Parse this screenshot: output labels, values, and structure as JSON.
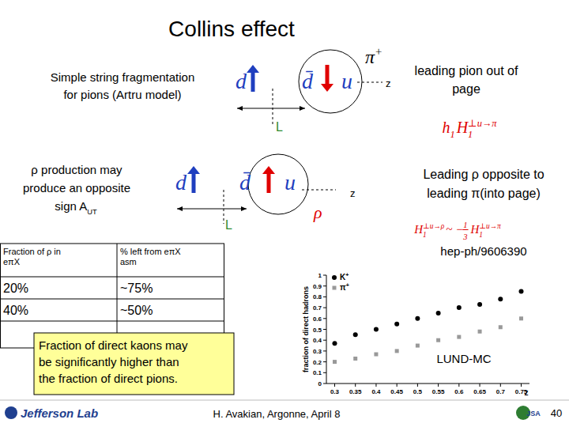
{
  "title": "Collins effect",
  "diagrams": [
    {
      "caption": [
        [
          {
            "t": "Simple string fragmentation"
          }
        ],
        [
          {
            "t": "for pions (Artru model)"
          }
        ]
      ],
      "quarks": [
        "d",
        "d̄",
        "u"
      ],
      "hadron": [
        {
          "t": "π",
          "sup": "+"
        }
      ],
      "axis_label": "z",
      "length_label": "L",
      "note": [
        "leading pion out of",
        "page"
      ],
      "formula": [
        {
          "t": "h",
          "sub": "1"
        },
        {
          "t": "H",
          "sub": "1",
          "sup": "⊥u→π"
        }
      ]
    },
    {
      "caption": [
        [
          {
            "t": "ρ production may"
          }
        ],
        [
          {
            "t": "produce an opposite"
          }
        ],
        [
          {
            "t": "sign A",
            "sub": "UT"
          }
        ]
      ],
      "quarks": [
        "d",
        "d̄",
        "u"
      ],
      "hadron": [
        {
          "t": "ρ"
        }
      ],
      "axis_label": "z",
      "length_label": "L",
      "note": [
        "Leading ρ opposite to",
        "leading π(into page)"
      ],
      "formula": [
        {
          "t": "H",
          "sub": "1",
          "sup": "⊥u→ρ"
        },
        {
          "t": " ~ −"
        },
        {
          "frac": [
            "1",
            "3"
          ]
        },
        {
          "t": "H",
          "sub": "1",
          "sup": "⊥u→π"
        }
      ]
    }
  ],
  "reference": "hep-ph/9606390",
  "table": {
    "header": [
      [
        "Fraction of ρ in",
        "eπX"
      ],
      [
        "% left from eπX",
        "asm"
      ]
    ],
    "rows": [
      [
        "20%",
        "~75%"
      ],
      [
        "40%",
        "~50%"
      ]
    ]
  },
  "callout": [
    "Fraction of direct kaons may",
    "be significantly higher than",
    "the fraction of direct pions."
  ],
  "chart_data": {
    "type": "scatter",
    "x": [
      0.3,
      0.35,
      0.4,
      0.45,
      0.5,
      0.55,
      0.6,
      0.65,
      0.7,
      0.75
    ],
    "series": [
      {
        "name": "K+",
        "color": "#000000",
        "marker": "circle",
        "values": [
          0.37,
          0.45,
          0.5,
          0.55,
          0.6,
          0.65,
          0.7,
          0.73,
          0.78,
          0.85
        ]
      },
      {
        "name": "π+",
        "color": "#999999",
        "marker": "square",
        "values": [
          0.2,
          0.23,
          0.27,
          0.3,
          0.35,
          0.4,
          0.43,
          0.48,
          0.52,
          0.6
        ]
      }
    ],
    "xlabel": "z",
    "ylabel": "fraction of direct hadrons",
    "xlim": [
      0.28,
      0.77
    ],
    "ylim": [
      0,
      1
    ],
    "xticks": [
      0.3,
      0.35,
      0.4,
      0.45,
      0.5,
      0.55,
      0.6,
      0.65,
      0.7,
      0.75
    ],
    "yticks": [
      0,
      0.1,
      0.2,
      0.3,
      0.4,
      0.5,
      0.6,
      0.7,
      0.8,
      0.9,
      1
    ],
    "legend": "top-left",
    "grid": false,
    "annotation": "LUND-MC"
  },
  "footer": {
    "logo": "Jefferson Lab",
    "author": "H. Avakian, Argonne, April 8",
    "page": "40",
    "badge": "JSA"
  }
}
